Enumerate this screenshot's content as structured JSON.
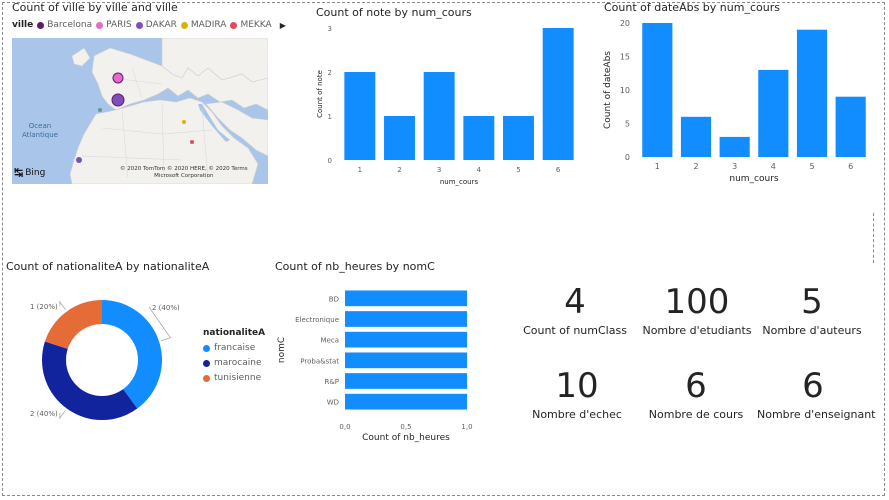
{
  "map_visual": {
    "title": "Count of ville by ville and ville",
    "legend_title": "ville",
    "legend_items": [
      {
        "label": "Barcelona",
        "color": "#5c1d6e"
      },
      {
        "label": "PARIS",
        "color": "#e66ac8"
      },
      {
        "label": "DAKAR",
        "color": "#7b4fbe"
      },
      {
        "label": "MADIRA",
        "color": "#d9b300"
      },
      {
        "label": "MEKKA",
        "color": "#e04a5c"
      }
    ],
    "ocean_label_1": "Ocean",
    "ocean_label_2": "Atlantique",
    "attribution_1": "© 2020 TomTom © 2020 HERE, © 2020 Terms",
    "attribution_2": "Microsoft Corporation",
    "bing_label": "Bing"
  },
  "chart_note": {
    "title": "Count of note by num_cours"
  },
  "chart_dateabs": {
    "title": "Count of dateAbs by num_cours"
  },
  "chart_nationalite": {
    "title": "Count of nationaliteA by nationaliteA",
    "legend_title": "nationaliteA"
  },
  "chart_nbheures": {
    "title": "Count of nb_heures by nomC"
  },
  "kpis": [
    {
      "value": "4",
      "label": "Count of numClass"
    },
    {
      "value": "100",
      "label": "Nombre d'etudiants"
    },
    {
      "value": "5",
      "label": "Nombre d'auteurs"
    },
    {
      "value": "10",
      "label": "Nombre d'echec"
    },
    {
      "value": "6",
      "label": "Nombre de cours"
    },
    {
      "value": "6",
      "label": "Nombre d'enseignant"
    }
  ],
  "chart_data": [
    {
      "type": "bar",
      "title": "Count of note by num_cours",
      "xlabel": "num_cours",
      "ylabel": "Count of note",
      "categories": [
        "1",
        "2",
        "3",
        "4",
        "5",
        "6"
      ],
      "values": [
        2,
        1,
        2,
        1,
        1,
        3
      ],
      "ylim": [
        0,
        3
      ],
      "yticks": [
        0,
        1,
        2,
        3
      ],
      "color": "#118dff"
    },
    {
      "type": "bar",
      "title": "Count of dateAbs by num_cours",
      "xlabel": "num_cours",
      "ylabel": "Count of dateAbs",
      "categories": [
        "1",
        "2",
        "3",
        "4",
        "5",
        "6"
      ],
      "values": [
        20,
        6,
        3,
        13,
        19,
        9
      ],
      "ylim": [
        0,
        20
      ],
      "yticks": [
        0,
        5,
        10,
        15,
        20
      ],
      "color": "#118dff"
    },
    {
      "type": "pie",
      "title": "Count of nationaliteA by nationaliteA",
      "legend_title": "nationaliteA",
      "categories": [
        "francaise",
        "marocaine",
        "tunisienne"
      ],
      "values": [
        2,
        2,
        1
      ],
      "labels": [
        "2 (40%)",
        "2 (40%)",
        "1 (20%)"
      ],
      "colors": [
        "#118dff",
        "#12239e",
        "#e66c37"
      ]
    },
    {
      "type": "bar",
      "orientation": "horizontal",
      "title": "Count of nb_heures by nomC",
      "xlabel": "Count of nb_heures",
      "ylabel": "nomC",
      "categories": [
        "BD",
        "Electronique",
        "Meca",
        "Proba&stat",
        "R&P",
        "WD"
      ],
      "values": [
        1,
        1,
        1,
        1,
        1,
        1
      ],
      "xlim": [
        0,
        1
      ],
      "xticks": [
        "0,0",
        "0,5",
        "1,0"
      ],
      "color": "#118dff"
    }
  ]
}
